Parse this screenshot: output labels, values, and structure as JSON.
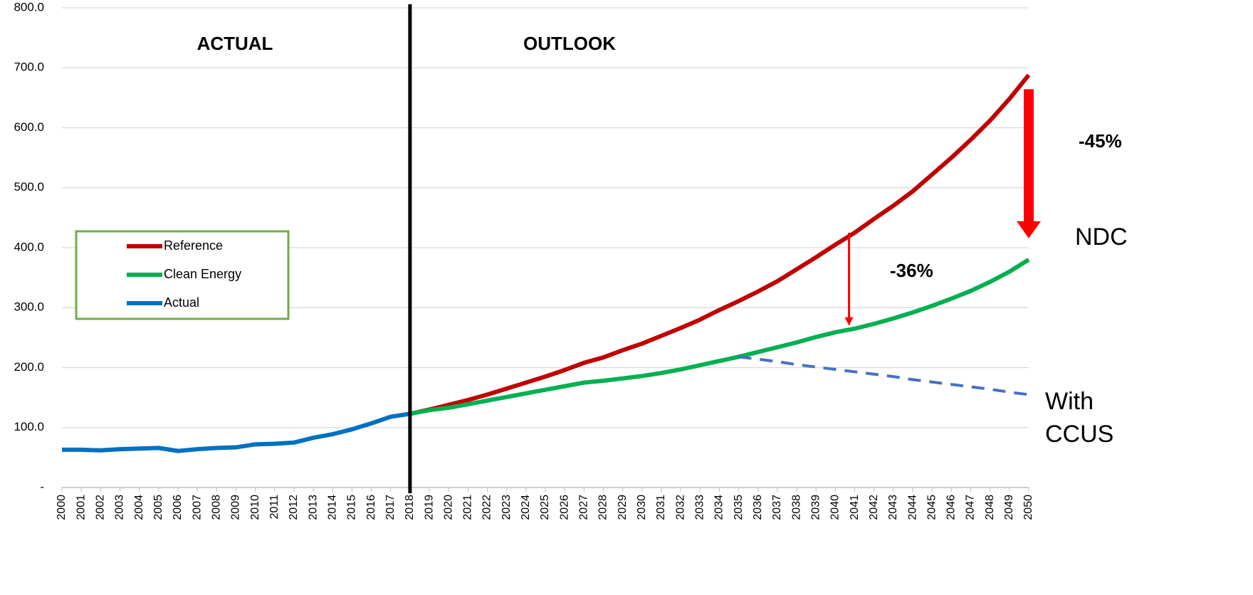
{
  "chart_data": {
    "type": "line",
    "x": [
      2000,
      2001,
      2002,
      2003,
      2004,
      2005,
      2006,
      2007,
      2008,
      2009,
      2010,
      2011,
      2012,
      2013,
      2014,
      2015,
      2016,
      2017,
      2018,
      2019,
      2020,
      2021,
      2022,
      2023,
      2024,
      2025,
      2026,
      2027,
      2028,
      2029,
      2030,
      2031,
      2032,
      2033,
      2034,
      2035,
      2036,
      2037,
      2038,
      2039,
      2040,
      2041,
      2042,
      2043,
      2044,
      2045,
      2046,
      2047,
      2048,
      2049,
      2050
    ],
    "xlim": [
      2000,
      2050
    ],
    "xticks": [
      2000,
      2001,
      2002,
      2003,
      2004,
      2005,
      2006,
      2007,
      2008,
      2009,
      2010,
      2011,
      2012,
      2013,
      2014,
      2015,
      2016,
      2017,
      2018,
      2019,
      2020,
      2021,
      2022,
      2023,
      2024,
      2025,
      2026,
      2027,
      2028,
      2029,
      2030,
      2031,
      2032,
      2033,
      2034,
      2035,
      2036,
      2037,
      2038,
      2039,
      2040,
      2041,
      2042,
      2043,
      2044,
      2045,
      2046,
      2047,
      2048,
      2049,
      2050
    ],
    "ylim": [
      0,
      800
    ],
    "yticks": [
      {
        "value": 0,
        "label": "-"
      },
      {
        "value": 100,
        "label": "100.0"
      },
      {
        "value": 200,
        "label": "200.0"
      },
      {
        "value": 300,
        "label": "300.0"
      },
      {
        "value": 400,
        "label": "400.0"
      },
      {
        "value": 500,
        "label": "500.0"
      },
      {
        "value": 600,
        "label": "600.0"
      },
      {
        "value": 700,
        "label": "700.0"
      },
      {
        "value": 800,
        "label": "800.0"
      }
    ],
    "grid": true,
    "divider_x": 2018,
    "series": [
      {
        "name": "Reference",
        "color": "#c00000",
        "values": [
          null,
          null,
          null,
          null,
          null,
          null,
          null,
          null,
          null,
          null,
          null,
          null,
          null,
          null,
          null,
          null,
          null,
          null,
          123,
          130,
          138,
          146,
          155,
          165,
          175,
          185,
          196,
          208,
          217,
          229,
          240,
          253,
          266,
          280,
          296,
          311,
          327,
          344,
          364,
          384,
          405,
          425,
          448,
          470,
          494,
          522,
          550,
          580,
          612,
          648,
          688
        ]
      },
      {
        "name": "Clean Energy",
        "color": "#00b050",
        "values": [
          null,
          null,
          null,
          null,
          null,
          null,
          null,
          null,
          null,
          null,
          null,
          null,
          null,
          null,
          null,
          null,
          null,
          null,
          123,
          129,
          133,
          139,
          145,
          151,
          157,
          163,
          169,
          175,
          178,
          182,
          186,
          191,
          197,
          204,
          211,
          218,
          226,
          234,
          242,
          251,
          259,
          265,
          273,
          282,
          292,
          303,
          315,
          328,
          343,
          360,
          380
        ]
      },
      {
        "name": "Actual",
        "color": "#0070c0",
        "values": [
          63,
          63,
          62,
          64,
          65,
          66,
          61,
          64,
          66,
          67,
          72,
          73,
          75,
          83,
          89,
          97,
          107,
          118,
          123,
          null,
          null,
          null,
          null,
          null,
          null,
          null,
          null,
          null,
          null,
          null,
          null,
          null,
          null,
          null,
          null,
          null,
          null,
          null,
          null,
          null,
          null,
          null,
          null,
          null,
          null,
          null,
          null,
          null,
          null,
          null,
          null
        ]
      },
      {
        "name": "With CCUS",
        "color": "#4472c4",
        "dashed": true,
        "show_in_legend": false,
        "values": [
          null,
          null,
          null,
          null,
          null,
          null,
          null,
          null,
          null,
          null,
          null,
          null,
          null,
          null,
          null,
          null,
          null,
          null,
          null,
          null,
          null,
          null,
          null,
          null,
          null,
          null,
          null,
          null,
          null,
          null,
          null,
          null,
          null,
          null,
          null,
          218,
          214,
          210,
          205,
          201,
          197,
          193,
          189,
          185,
          180,
          176,
          172,
          168,
          164,
          159,
          155
        ]
      }
    ],
    "annotations": [
      "ACTUAL",
      "OUTLOOK",
      "NDC"
    ],
    "arrows": [
      {
        "x": 2050,
        "label": "-45%"
      },
      {
        "x": 2041,
        "label": "-36%"
      }
    ],
    "legend_border_color": "#70ad47"
  }
}
